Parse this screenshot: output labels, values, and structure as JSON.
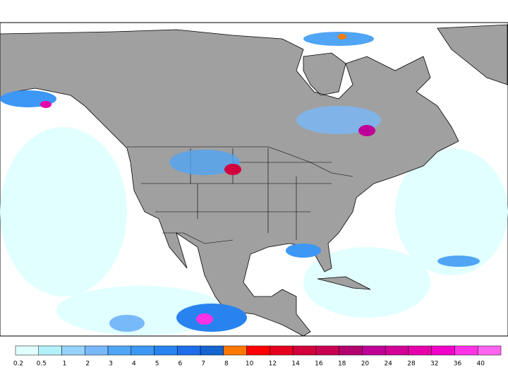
{
  "legend": {
    "colors": [
      "#e1ffff",
      "#b4f0fa",
      "#96d2fa",
      "#78b9fa",
      "#50a5f5",
      "#3c97f5",
      "#2883f0",
      "#1e6eeb",
      "#1464d2",
      "#ff7800",
      "#ff0000",
      "#e6001e",
      "#d2003c",
      "#c80050",
      "#b4006e",
      "#be0096",
      "#d20096",
      "#e600aa",
      "#f000c8",
      "#ff32e6",
      "#ff64f0"
    ],
    "labels": [
      0.2,
      0.5,
      1,
      2,
      3,
      4,
      5,
      6,
      7,
      8,
      10,
      12,
      14,
      16,
      18,
      20,
      24,
      28,
      32,
      36,
      40
    ]
  }
}
